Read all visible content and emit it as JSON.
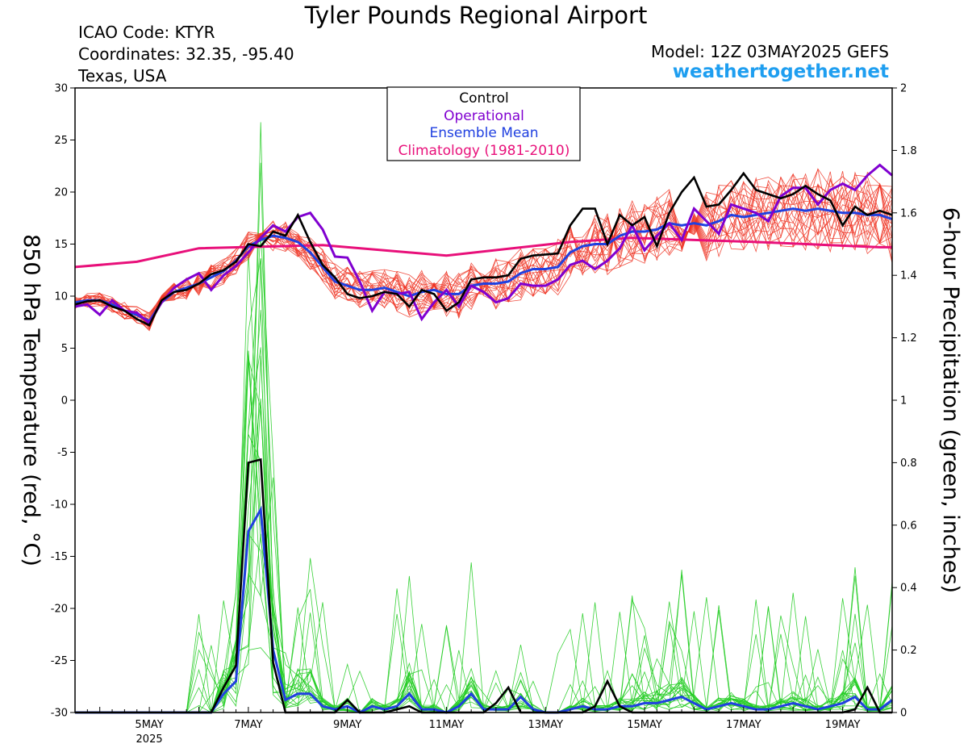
{
  "header": {
    "title": "Tyler Pounds Regional Airport",
    "icao": "ICAO Code: KTYR",
    "coordinates": "Coordinates: 32.35, -95.40",
    "region": "Texas, USA",
    "model": "Model: 12Z 03MAY2025 GEFS",
    "site": "weathertogether.net"
  },
  "colors": {
    "control": "#000000",
    "operational": "#8000d0",
    "ensemble_mean": "#2040e0",
    "climatology": "#e8107a",
    "members_temp": "#ee3322",
    "members_precip": "#22cc22",
    "site": "#1e9ef0"
  },
  "chart_data": {
    "type": "line",
    "title": "Tyler Pounds Regional Airport",
    "ylabel_left": "850 hPa Temperature (red, °C)",
    "ylabel_right": "6-hour Precipitation (green, inches)",
    "x_axis": "6-hourly time steps from 03 May 2025 12Z to 19 May 2025 18Z",
    "xlim": [
      0,
      66
    ],
    "ylim_left": [
      -30,
      30
    ],
    "ylim_right": [
      0,
      2
    ],
    "yticks_left": [
      "30",
      "25",
      "20",
      "15",
      "10",
      "5",
      "0",
      "-5",
      "-10",
      "-15",
      "-20",
      "-25",
      "-30"
    ],
    "yticks_right": [
      "2",
      "1.8",
      "1.6",
      "1.4",
      "1.2",
      "1",
      "0.8",
      "0.6",
      "0.4",
      "0.2",
      "0"
    ],
    "xticks": [
      {
        "x": 6,
        "label": "5MAY",
        "sub": "2025"
      },
      {
        "x": 14,
        "label": "7MAY"
      },
      {
        "x": 22,
        "label": "9MAY"
      },
      {
        "x": 30,
        "label": "11MAY"
      },
      {
        "x": 38,
        "label": "13MAY"
      },
      {
        "x": 46,
        "label": "15MAY"
      },
      {
        "x": 54,
        "label": "17MAY"
      },
      {
        "x": 62,
        "label": "19MAY"
      }
    ],
    "grid": false,
    "legend_position": "top-center",
    "legend": [
      "Control",
      "Operational",
      "Ensemble Mean",
      "Climatology (1981-2010)"
    ],
    "temperature": {
      "control": [
        9.2,
        9.5,
        9.6,
        9.0,
        8.6,
        7.8,
        7.2,
        9.6,
        10.4,
        10.6,
        11.2,
        12.1,
        12.5,
        13.3,
        15.0,
        14.8,
        16.2,
        15.8,
        17.8,
        15.2,
        13.0,
        11.8,
        10.2,
        9.8,
        10.0,
        10.4,
        10.2,
        9.0,
        10.6,
        10.2,
        8.6,
        9.4,
        11.6,
        11.8,
        11.8,
        12.0,
        13.6,
        13.9,
        14.0,
        14.1,
        16.8,
        18.4,
        18.4,
        15.0,
        17.8,
        16.8,
        17.6,
        14.8,
        18.0,
        20.0,
        21.4,
        18.6,
        18.8,
        20.2,
        21.8,
        20.2,
        19.8,
        19.4,
        19.8,
        20.6,
        19.8,
        19.2,
        16.8,
        18.6,
        17.8,
        18.2,
        17.8
      ],
      "operational": [
        9.0,
        9.2,
        8.2,
        9.6,
        8.6,
        8.4,
        7.4,
        9.4,
        10.8,
        11.6,
        12.2,
        10.6,
        12.0,
        12.9,
        14.2,
        15.6,
        16.8,
        16.2,
        17.6,
        18.0,
        16.4,
        13.8,
        13.7,
        11.4,
        8.6,
        10.4,
        10.2,
        10.4,
        7.8,
        9.4,
        10.6,
        9.0,
        11.0,
        10.4,
        9.4,
        9.8,
        11.2,
        11.0,
        11.0,
        11.6,
        13.0,
        13.4,
        12.6,
        13.4,
        14.6,
        16.8,
        14.4,
        15.8,
        17.0,
        15.4,
        18.4,
        17.2,
        16.0,
        18.8,
        18.4,
        18.0,
        17.2,
        19.6,
        20.4,
        20.4,
        18.8,
        20.2,
        20.8,
        20.2,
        21.6,
        22.6,
        21.6
      ],
      "ensemble_mean": [
        9.4,
        9.6,
        9.6,
        9.2,
        8.6,
        8.2,
        7.6,
        9.4,
        10.4,
        10.8,
        11.2,
        11.8,
        12.4,
        13.4,
        14.8,
        15.4,
        15.8,
        15.6,
        15.2,
        14.2,
        12.8,
        11.4,
        11.0,
        10.6,
        10.6,
        10.8,
        10.4,
        10.0,
        10.4,
        10.6,
        10.2,
        10.2,
        11.0,
        11.2,
        11.2,
        11.4,
        12.2,
        12.6,
        12.6,
        12.8,
        14.2,
        14.8,
        15.0,
        15.0,
        15.8,
        16.2,
        16.2,
        16.4,
        17.0,
        16.8,
        17.0,
        16.8,
        17.2,
        17.8,
        17.6,
        17.8,
        18.0,
        18.2,
        18.4,
        18.2,
        18.4,
        18.2,
        18.0,
        18.0,
        17.8,
        17.8,
        17.4
      ],
      "climatology_x": [
        0,
        5,
        10,
        20,
        30,
        40,
        45,
        55,
        65,
        66
      ],
      "climatology_y": [
        12.8,
        13.3,
        14.6,
        14.9,
        13.9,
        15.2,
        15.6,
        15.2,
        14.7,
        14.7
      ]
    },
    "precipitation": {
      "control": [
        0,
        0,
        0,
        0,
        0,
        0,
        0,
        0,
        0,
        0,
        0,
        0,
        0.08,
        0.15,
        0.8,
        0.81,
        0.16,
        0,
        0,
        0,
        0,
        0,
        0.04,
        0,
        0,
        0,
        0.01,
        0.02,
        0,
        0,
        0,
        0,
        0,
        0,
        0.03,
        0.08,
        0,
        0,
        0,
        0,
        0,
        0,
        0.02,
        0.1,
        0.02,
        0,
        0,
        0,
        0,
        0,
        0,
        0,
        0,
        0,
        0,
        0,
        0,
        0,
        0,
        0,
        0,
        0,
        0,
        0.01,
        0.08,
        0,
        0
      ],
      "ensemble_mean": [
        0,
        0,
        0,
        0,
        0,
        0,
        0,
        0,
        0,
        0,
        0,
        0,
        0.06,
        0.1,
        0.58,
        0.65,
        0.2,
        0.04,
        0.06,
        0.06,
        0.02,
        0.01,
        0.02,
        0,
        0.02,
        0.01,
        0.02,
        0.06,
        0.01,
        0.01,
        0,
        0.02,
        0.06,
        0.01,
        0.01,
        0.01,
        0.05,
        0.01,
        0,
        0,
        0.01,
        0.02,
        0.01,
        0.01,
        0.02,
        0.02,
        0.03,
        0.03,
        0.04,
        0.05,
        0.03,
        0.01,
        0.02,
        0.03,
        0.02,
        0.01,
        0.01,
        0.02,
        0.03,
        0.02,
        0.01,
        0.02,
        0.03,
        0.05,
        0.01,
        0.01,
        0.04
      ]
    }
  }
}
